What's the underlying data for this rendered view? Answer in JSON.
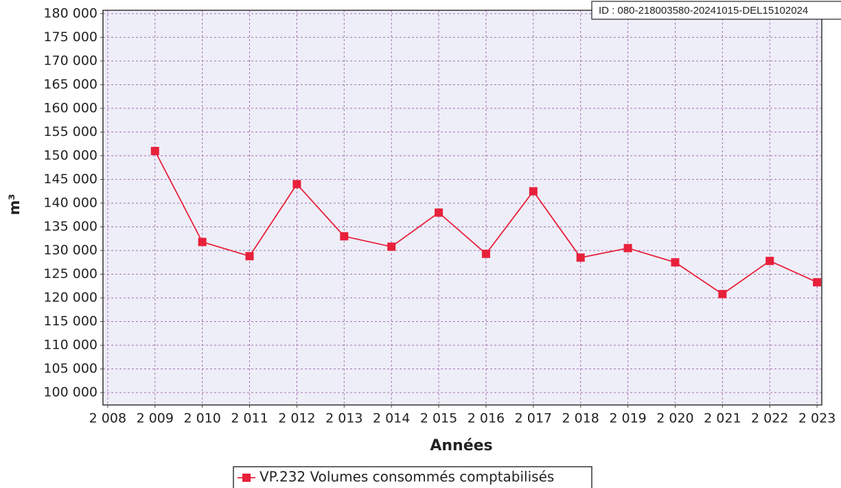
{
  "chart_data": {
    "type": "line",
    "annotation": "ID : 080-218003580-20241015-DEL15102024",
    "x_label": "Années",
    "y_label": "m³",
    "x": [
      2009,
      2010,
      2011,
      2012,
      2013,
      2014,
      2015,
      2016,
      2017,
      2018,
      2019,
      2020,
      2021,
      2022,
      2023
    ],
    "series": [
      {
        "name": "VP.232 Volumes consommés comptabilisés",
        "color": "#e8203a",
        "values": [
          151000,
          131800,
          128800,
          144000,
          133000,
          130800,
          138000,
          129300,
          142500,
          128500,
          130500,
          127500,
          120800,
          127800,
          123300
        ]
      }
    ],
    "xlim": [
      2007.9,
      2023.1
    ],
    "xticks": [
      {
        "value": 2008,
        "label": "2 008"
      },
      {
        "value": 2009,
        "label": "2 009"
      },
      {
        "value": 2010,
        "label": "2 010"
      },
      {
        "value": 2011,
        "label": "2 011"
      },
      {
        "value": 2012,
        "label": "2 012"
      },
      {
        "value": 2013,
        "label": "2 013"
      },
      {
        "value": 2014,
        "label": "2 014"
      },
      {
        "value": 2015,
        "label": "2 015"
      },
      {
        "value": 2016,
        "label": "2 016"
      },
      {
        "value": 2017,
        "label": "2 017"
      },
      {
        "value": 2018,
        "label": "2 018"
      },
      {
        "value": 2019,
        "label": "2 019"
      },
      {
        "value": 2020,
        "label": "2 020"
      },
      {
        "value": 2021,
        "label": "2 021"
      },
      {
        "value": 2022,
        "label": "2 022"
      },
      {
        "value": 2023,
        "label": "2 023"
      }
    ],
    "ylim": [
      97400,
      180700
    ],
    "yticks": [
      {
        "value": 100000,
        "label": "100 000"
      },
      {
        "value": 105000,
        "label": "105 000"
      },
      {
        "value": 110000,
        "label": "110 000"
      },
      {
        "value": 115000,
        "label": "115 000"
      },
      {
        "value": 120000,
        "label": "120 000"
      },
      {
        "value": 125000,
        "label": "125 000"
      },
      {
        "value": 130000,
        "label": "130 000"
      },
      {
        "value": 135000,
        "label": "135 000"
      },
      {
        "value": 140000,
        "label": "140 000"
      },
      {
        "value": 145000,
        "label": "145 000"
      },
      {
        "value": 150000,
        "label": "150 000"
      },
      {
        "value": 155000,
        "label": "155 000"
      },
      {
        "value": 160000,
        "label": "160 000"
      },
      {
        "value": 165000,
        "label": "165 000"
      },
      {
        "value": 170000,
        "label": "170 000"
      },
      {
        "value": 175000,
        "label": "175 000"
      },
      {
        "value": 180000,
        "label": "180 000"
      }
    ],
    "grid": true,
    "background": "#eeeef8",
    "grid_color": "#a070b0"
  }
}
